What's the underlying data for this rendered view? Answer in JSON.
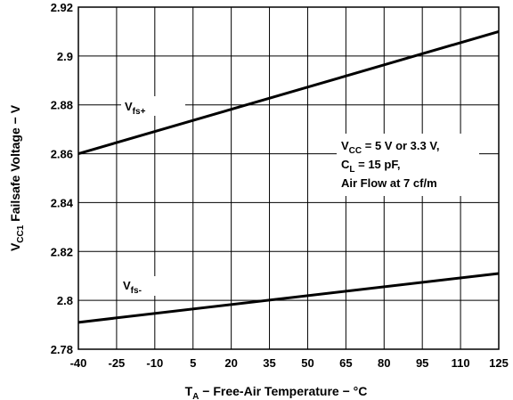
{
  "chart_data": {
    "type": "line",
    "xlabel": {
      "main": "T",
      "sub": "A",
      "rest": " − Free-Air Temperature − °C"
    },
    "ylabel": {
      "main": "V",
      "sub": "CC1",
      "rest": " Failsafe Voltage − V"
    },
    "xlim": [
      -40,
      125
    ],
    "ylim": [
      2.78,
      2.92
    ],
    "x_ticks": [
      "-40",
      "-25",
      "-10",
      "5",
      "20",
      "35",
      "50",
      "65",
      "80",
      "95",
      "110",
      "125"
    ],
    "y_ticks": [
      "2.78",
      "2.8",
      "2.82",
      "2.84",
      "2.86",
      "2.88",
      "2.9",
      "2.92"
    ],
    "grid": true,
    "series": [
      {
        "name": "fs+",
        "label_main": "V",
        "label_sub": "fs+",
        "x": [
          -40,
          125
        ],
        "y": [
          2.86,
          2.91
        ]
      },
      {
        "name": "fs-",
        "label_main": "V",
        "label_sub": "fs-",
        "x": [
          -40,
          125
        ],
        "y": [
          2.791,
          2.811
        ]
      }
    ],
    "annotation": {
      "line1_a": "V",
      "line1_sub": "CC",
      "line1_b": " = 5 V or 3.3 V,",
      "line2_a": "C",
      "line2_sub": "L",
      "line2_b": "  = 15 pF,",
      "line3": "Air Flow at 7 cf/m"
    }
  }
}
